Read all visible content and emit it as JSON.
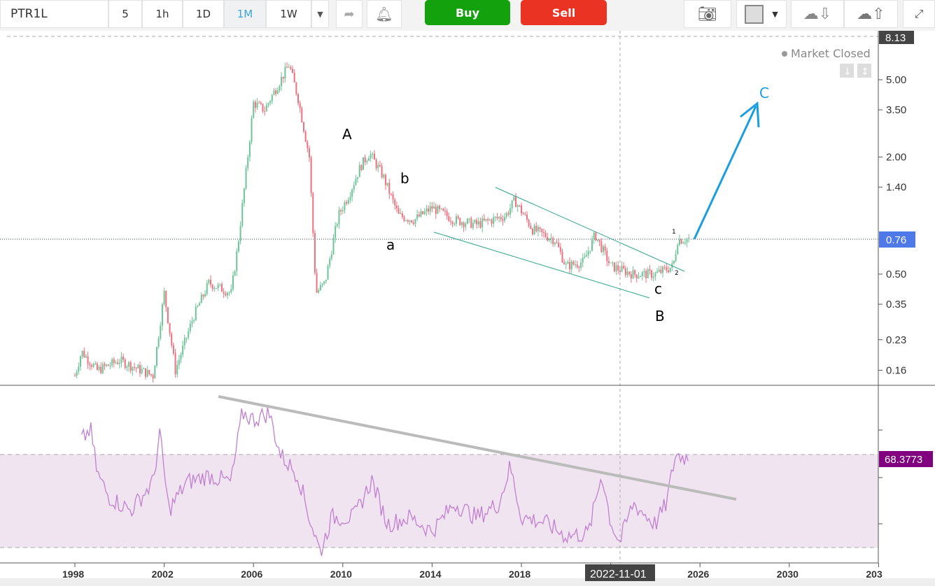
{
  "toolbar": {
    "symbol": "PTR1L",
    "intervals": [
      "5",
      "1h",
      "1D",
      "1M",
      "1W"
    ],
    "active_interval": "1M",
    "buy": "Buy",
    "sell": "Sell"
  },
  "status": {
    "market": "Market Closed"
  },
  "price_axis": {
    "ticks": [
      "5.00",
      "3.50",
      "2.00",
      "1.40",
      "0.50",
      "0.35",
      "0.23",
      "0.16"
    ],
    "top_label": "8.13",
    "current_label": "0.76"
  },
  "rsi_axis": {
    "current_label": "68.3773"
  },
  "time_axis": {
    "ticks": [
      "1998",
      "2002",
      "2006",
      "2010",
      "2014",
      "2018",
      "2022",
      "2026",
      "2030",
      "203"
    ],
    "crosshair_label": "2022-11-01"
  },
  "annotations": {
    "A": "A",
    "b": "b",
    "a": "a",
    "c": "c",
    "B": "B",
    "C": "C",
    "one": "1",
    "two": "2"
  },
  "colors": {
    "up": "#6cc497",
    "down": "#ef6f7d",
    "rsi": "#c07fd0",
    "accent": "#1a9ee0"
  },
  "chart_data": {
    "type": "candlestick",
    "scale": "log",
    "price_path": [
      [
        1998.0,
        0.15
      ],
      [
        1998.3,
        0.2
      ],
      [
        1999,
        0.16
      ],
      [
        2000,
        0.18
      ],
      [
        2001.5,
        0.15
      ],
      [
        2002,
        0.4
      ],
      [
        2002.5,
        0.16
      ],
      [
        2003.3,
        0.3
      ],
      [
        2004,
        0.45
      ],
      [
        2005,
        0.4
      ],
      [
        2005.3,
        0.7
      ],
      [
        2005.7,
        1.8
      ],
      [
        2006,
        3.8
      ],
      [
        2006.5,
        3.5
      ],
      [
        2007,
        4.5
      ],
      [
        2007.6,
        6.0
      ],
      [
        2008,
        4.0
      ],
      [
        2008.5,
        2.0
      ],
      [
        2008.8,
        0.4
      ],
      [
        2009.2,
        0.45
      ],
      [
        2009.8,
        1.0
      ],
      [
        2010.3,
        1.3
      ],
      [
        2010.8,
        1.8
      ],
      [
        2011.2,
        2.1
      ],
      [
        2011.8,
        1.6
      ],
      [
        2012.5,
        1.0
      ],
      [
        2013.2,
        0.95
      ],
      [
        2014,
        1.1
      ],
      [
        2015,
        0.95
      ],
      [
        2016,
        0.9
      ],
      [
        2017.3,
        1.0
      ],
      [
        2017.7,
        1.2
      ],
      [
        2018.5,
        0.85
      ],
      [
        2019.5,
        0.75
      ],
      [
        2020,
        0.55
      ],
      [
        2020.8,
        0.58
      ],
      [
        2021.3,
        0.8
      ],
      [
        2022,
        0.55
      ],
      [
        2023,
        0.5
      ],
      [
        2024,
        0.5
      ],
      [
        2024.8,
        0.55
      ],
      [
        2025,
        0.75
      ],
      [
        2025.5,
        0.76
      ]
    ],
    "rsi_path": [
      [
        1998.3,
        76
      ],
      [
        1998.7,
        81
      ],
      [
        1999,
        62
      ],
      [
        1999.5,
        52
      ],
      [
        2000.5,
        46
      ],
      [
        2001.5,
        58
      ],
      [
        2001.8,
        79
      ],
      [
        2002.2,
        46
      ],
      [
        2003,
        58
      ],
      [
        2004,
        61
      ],
      [
        2005,
        58
      ],
      [
        2005.5,
        88
      ],
      [
        2006,
        85
      ],
      [
        2006.7,
        88
      ],
      [
        2007.2,
        70
      ],
      [
        2008,
        61
      ],
      [
        2008.5,
        43
      ],
      [
        2009,
        28
      ],
      [
        2009.5,
        43
      ],
      [
        2010.5,
        43
      ],
      [
        2011.3,
        59
      ],
      [
        2012,
        40
      ],
      [
        2013,
        43
      ],
      [
        2014,
        37
      ],
      [
        2015,
        49
      ],
      [
        2016,
        43
      ],
      [
        2017,
        49
      ],
      [
        2017.5,
        65
      ],
      [
        2018,
        43
      ],
      [
        2019,
        41
      ],
      [
        2020,
        35
      ],
      [
        2021,
        36
      ],
      [
        2021.6,
        62
      ],
      [
        2022,
        41
      ],
      [
        2022.4,
        32
      ],
      [
        2023,
        49
      ],
      [
        2024,
        40
      ],
      [
        2024.5,
        49
      ],
      [
        2024.9,
        70
      ],
      [
        2025.5,
        68.38
      ]
    ],
    "rsi_band": [
      30,
      70
    ]
  }
}
